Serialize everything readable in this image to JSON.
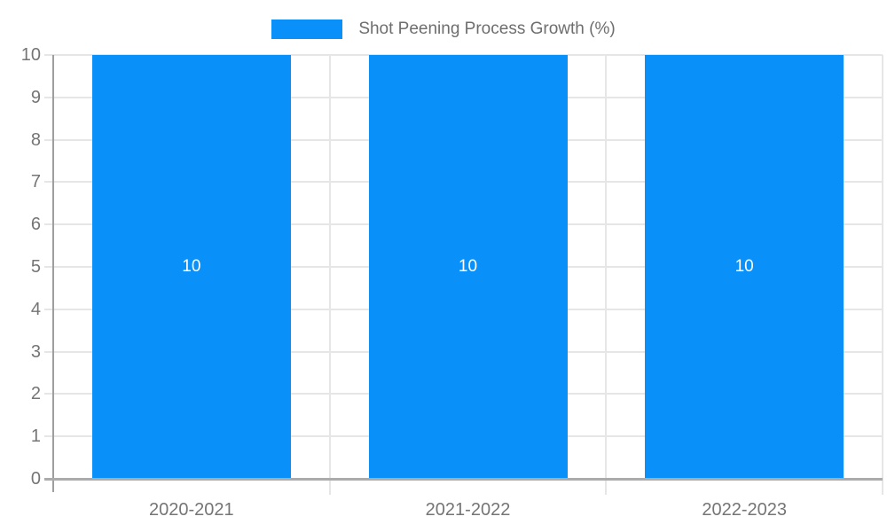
{
  "chart_data": {
    "type": "bar",
    "title": "Shot Peening Process Growth (%)",
    "categories": [
      "2020-2021",
      "2021-2022",
      "2022-2023"
    ],
    "values": [
      10,
      10,
      10
    ],
    "bar_labels": [
      "10",
      "10",
      "10"
    ],
    "xlabel": "",
    "ylabel": "",
    "ylim": [
      0,
      10
    ],
    "yticks": [
      0,
      1,
      2,
      3,
      4,
      5,
      6,
      7,
      8,
      9,
      10
    ],
    "grid": true,
    "legend_position": "top-center",
    "legend_entries": [
      "Shot Peening Process Growth (%)"
    ],
    "colors": {
      "bar": "#0a91f9",
      "gridline": "#e6e6e6",
      "axis_line": "#9e9e9e",
      "baseline": "#ababab",
      "tick_text": "#757575",
      "legend_text": "#6e6e6e",
      "bar_label_text": "#ffffff",
      "background": "#ffffff"
    }
  }
}
